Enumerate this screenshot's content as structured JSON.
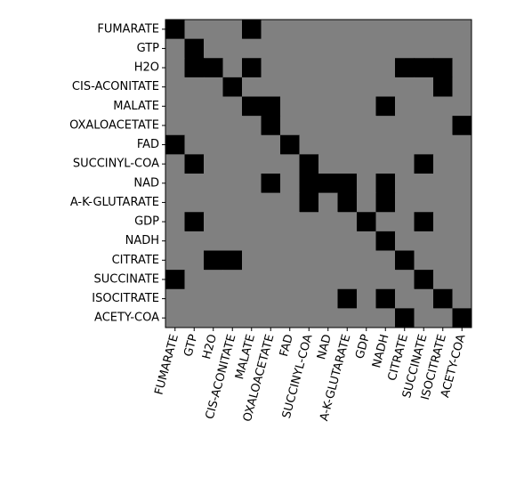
{
  "chart_data": {
    "type": "heatmap",
    "x_categories": [
      "FUMARATE",
      "GTP",
      "H2O",
      "CIS-ACONITATE",
      "MALATE",
      "OXALOACETATE",
      "FAD",
      "SUCCINYL-COA",
      "NAD",
      "A-K-GLUTARATE",
      "GDP",
      "NADH",
      "CITRATE",
      "SUCCINATE",
      "ISOCITRATE",
      "ACETY-COA"
    ],
    "y_categories": [
      "FUMARATE",
      "GTP",
      "H2O",
      "CIS-ACONITATE",
      "MALATE",
      "OXALOACETATE",
      "FAD",
      "SUCCINYL-COA",
      "NAD",
      "A-K-GLUTARATE",
      "GDP",
      "NADH",
      "CITRATE",
      "SUCCINATE",
      "ISOCITRATE",
      "ACETY-COA"
    ],
    "values": [
      [
        1,
        0,
        0,
        0,
        1,
        0,
        0,
        0,
        0,
        0,
        0,
        0,
        0,
        0,
        0,
        0
      ],
      [
        0,
        1,
        0,
        0,
        0,
        0,
        0,
        0,
        0,
        0,
        0,
        0,
        0,
        0,
        0,
        0
      ],
      [
        0,
        1,
        1,
        0,
        1,
        0,
        0,
        0,
        0,
        0,
        0,
        0,
        1,
        1,
        1,
        0
      ],
      [
        0,
        0,
        0,
        1,
        0,
        0,
        0,
        0,
        0,
        0,
        0,
        0,
        0,
        0,
        1,
        0
      ],
      [
        0,
        0,
        0,
        0,
        1,
        1,
        0,
        0,
        0,
        0,
        0,
        1,
        0,
        0,
        0,
        0
      ],
      [
        0,
        0,
        0,
        0,
        0,
        1,
        0,
        0,
        0,
        0,
        0,
        0,
        0,
        0,
        0,
        1
      ],
      [
        1,
        0,
        0,
        0,
        0,
        0,
        1,
        0,
        0,
        0,
        0,
        0,
        0,
        0,
        0,
        0
      ],
      [
        0,
        1,
        0,
        0,
        0,
        0,
        0,
        1,
        0,
        0,
        0,
        0,
        0,
        1,
        0,
        0
      ],
      [
        0,
        0,
        0,
        0,
        0,
        1,
        0,
        1,
        1,
        1,
        0,
        1,
        0,
        0,
        0,
        0
      ],
      [
        0,
        0,
        0,
        0,
        0,
        0,
        0,
        1,
        0,
        1,
        0,
        1,
        0,
        0,
        0,
        0
      ],
      [
        0,
        1,
        0,
        0,
        0,
        0,
        0,
        0,
        0,
        0,
        1,
        0,
        0,
        1,
        0,
        0
      ],
      [
        0,
        0,
        0,
        0,
        0,
        0,
        0,
        0,
        0,
        0,
        0,
        1,
        0,
        0,
        0,
        0
      ],
      [
        0,
        0,
        1,
        1,
        0,
        0,
        0,
        0,
        0,
        0,
        0,
        0,
        1,
        0,
        0,
        0
      ],
      [
        1,
        0,
        0,
        0,
        0,
        0,
        0,
        0,
        0,
        0,
        0,
        0,
        0,
        1,
        0,
        0
      ],
      [
        0,
        0,
        0,
        0,
        0,
        0,
        0,
        0,
        0,
        1,
        0,
        1,
        0,
        0,
        1,
        0
      ],
      [
        0,
        0,
        0,
        0,
        0,
        0,
        0,
        0,
        0,
        0,
        0,
        0,
        1,
        0,
        0,
        1
      ]
    ],
    "colors": [
      "#808080",
      "#000000"
    ]
  }
}
